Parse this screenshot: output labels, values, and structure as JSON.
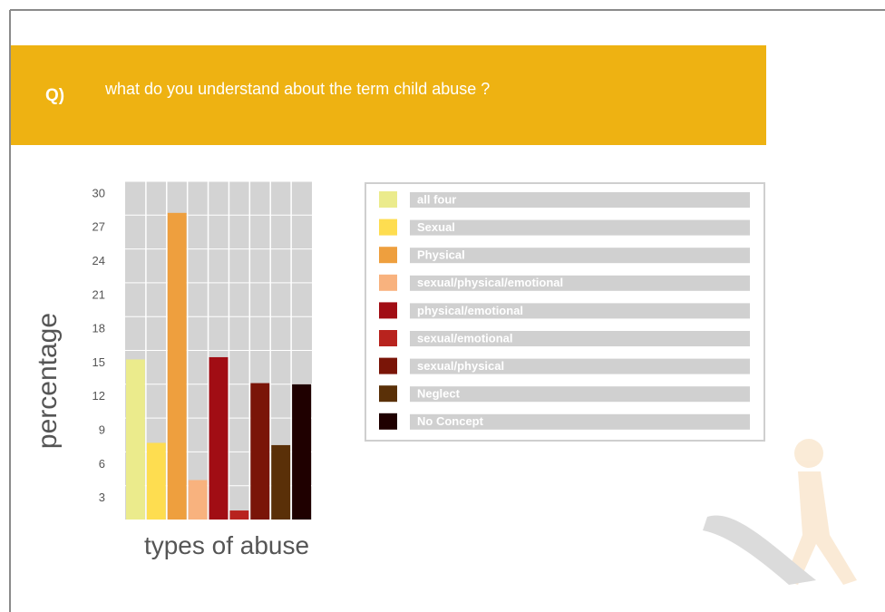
{
  "header": {
    "label": "Q)",
    "question": "what do you understand about the term child abuse ?"
  },
  "chart_data": {
    "type": "bar",
    "y_label": "percentage",
    "x_label": "types of abuse",
    "categories": [
      "all four",
      "Sexual",
      "Physical",
      "sexual/physical/emotional",
      "physical/emotional",
      "sexual/emotional",
      "sexual/physical",
      "Neglect",
      "No Concept"
    ],
    "values": [
      14.2,
      6.8,
      27.2,
      3.5,
      14.4,
      0.8,
      12.1,
      6.6,
      12.0
    ],
    "colors": [
      "#ebeb8c",
      "#fedd50",
      "#ee9f3e",
      "#f8b27e",
      "#a10d14",
      "#b8231e",
      "#7a1508",
      "#5a3008",
      "#1f0000"
    ],
    "ylim": [
      0,
      30
    ],
    "yticks": [
      3,
      6,
      9,
      12,
      15,
      18,
      21,
      24,
      27,
      30
    ],
    "grid": true
  }
}
